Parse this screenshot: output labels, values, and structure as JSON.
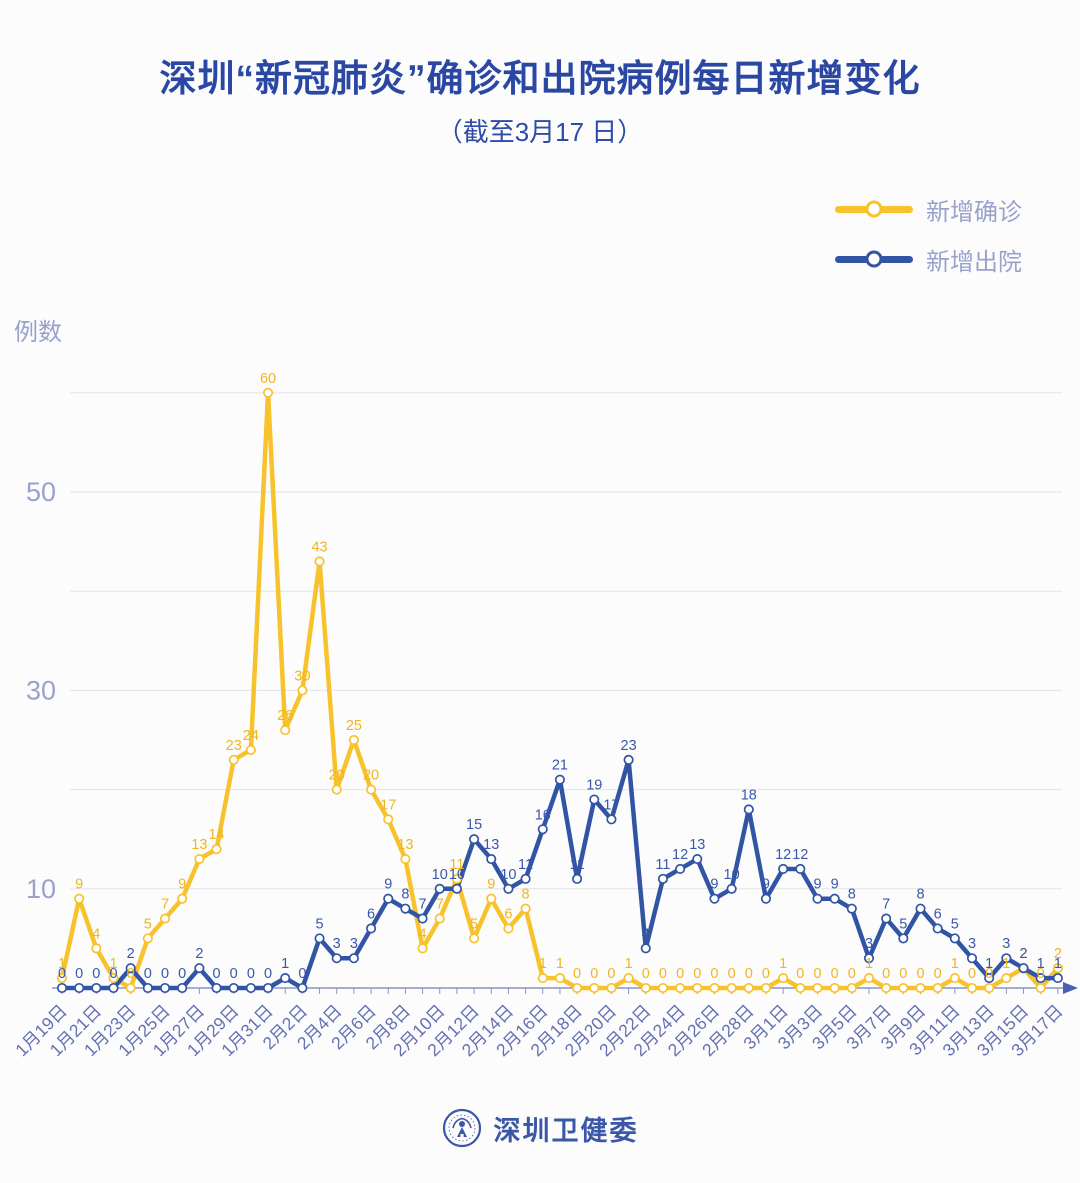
{
  "header": {
    "title": "深圳“新冠肺炎”确诊和出院病例每日新增变化",
    "subtitle": "（截至3月17 日）"
  },
  "legend": {
    "items": [
      {
        "label": "新增确诊",
        "color": "#F7C22B"
      },
      {
        "label": "新增出院",
        "color": "#3254A5"
      }
    ]
  },
  "chart_data": {
    "type": "line",
    "title": "深圳“新冠肺炎”确诊和出院病例每日新增变化（截至3月17日）",
    "ylabel": "例数",
    "xlabel": "",
    "ylim": [
      0,
      62
    ],
    "y_ticks": [
      10,
      30,
      50
    ],
    "gridlines": [
      10,
      20,
      30,
      40,
      50,
      60
    ],
    "grid": true,
    "legend_position": "top-right",
    "x_tick_every": 2,
    "x": [
      "1月19日",
      "1月20日",
      "1月21日",
      "1月22日",
      "1月23日",
      "1月24日",
      "1月25日",
      "1月26日",
      "1月27日",
      "1月28日",
      "1月29日",
      "1月30日",
      "1月31日",
      "2月1日",
      "2月2日",
      "2月3日",
      "2月4日",
      "2月5日",
      "2月6日",
      "2月7日",
      "2月8日",
      "2月9日",
      "2月10日",
      "2月11日",
      "2月12日",
      "2月13日",
      "2月14日",
      "2月15日",
      "2月16日",
      "2月17日",
      "2月18日",
      "2月19日",
      "2月20日",
      "2月21日",
      "2月22日",
      "2月23日",
      "2月24日",
      "2月25日",
      "2月26日",
      "2月27日",
      "2月28日",
      "2月29日",
      "3月1日",
      "3月2日",
      "3月3日",
      "3月4日",
      "3月5日",
      "3月6日",
      "3月7日",
      "3月8日",
      "3月9日",
      "3月10日",
      "3月11日",
      "3月12日",
      "3月13日",
      "3月14日",
      "3月15日",
      "3月16日",
      "3月17日"
    ],
    "series": [
      {
        "name": "新增确诊",
        "color": "#F7C22B",
        "label_color": "#F0B522",
        "values": [
          1,
          9,
          4,
          1,
          0,
          5,
          7,
          9,
          13,
          14,
          23,
          24,
          60,
          26,
          30,
          43,
          20,
          25,
          20,
          17,
          13,
          4,
          7,
          11,
          5,
          9,
          6,
          8,
          1,
          1,
          0,
          0,
          0,
          1,
          0,
          0,
          0,
          0,
          0,
          0,
          0,
          0,
          1,
          0,
          0,
          0,
          0,
          1,
          0,
          0,
          0,
          0,
          1,
          0,
          0,
          1,
          2,
          0,
          2
        ]
      },
      {
        "name": "新增出院",
        "color": "#3254A5",
        "label_color": "#3A57A9",
        "values": [
          0,
          0,
          0,
          0,
          2,
          0,
          0,
          0,
          2,
          0,
          0,
          0,
          0,
          1,
          0,
          5,
          3,
          3,
          6,
          9,
          8,
          7,
          10,
          10,
          15,
          13,
          10,
          11,
          16,
          21,
          11,
          19,
          17,
          23,
          4,
          11,
          12,
          13,
          9,
          10,
          18,
          9,
          12,
          12,
          9,
          9,
          8,
          3,
          7,
          5,
          8,
          6,
          5,
          3,
          1,
          3,
          2,
          1,
          1
        ]
      }
    ],
    "style": {
      "grid_color": "#e3e3e8",
      "axis_color": "#8b94c4",
      "x_tick_label_color": "#6370b2",
      "y_tick_label_color": "#99a1cc",
      "background": "#fcfcfd"
    }
  },
  "footer": {
    "logo": "shenzhen-health-commission-badge",
    "text": "深圳卫健委"
  }
}
